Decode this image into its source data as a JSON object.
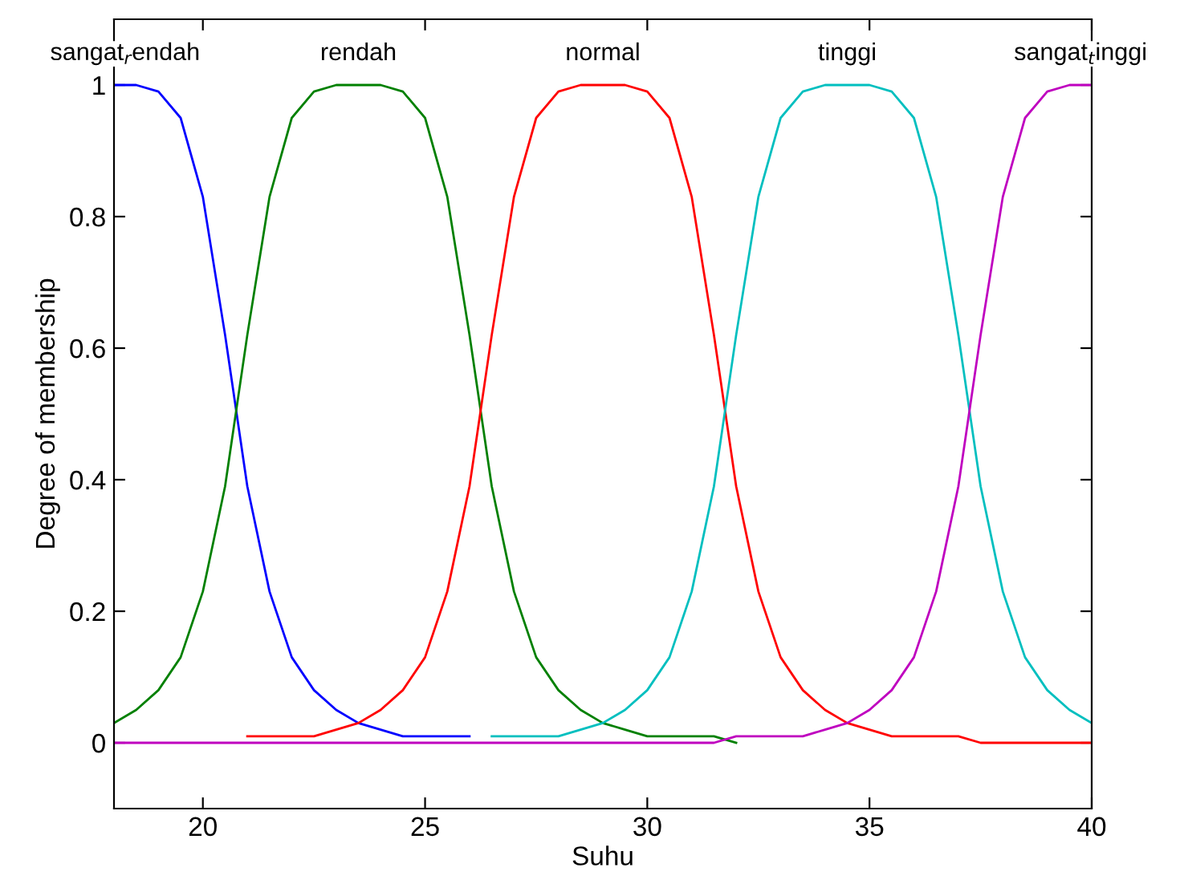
{
  "chart_data": {
    "type": "line",
    "xlabel": "Suhu",
    "ylabel": "Degree of membership",
    "x": [
      18,
      18.5,
      19,
      19.5,
      20,
      20.5,
      21,
      21.5,
      22,
      22.5,
      23,
      23.5,
      24,
      24.5,
      25,
      25.5,
      26,
      26.5,
      27,
      27.5,
      28,
      28.5,
      29,
      29.5,
      30,
      30.5,
      31,
      31.5,
      32,
      32.5,
      33,
      33.5,
      34,
      34.5,
      35,
      35.5,
      36,
      36.5,
      37,
      37.5,
      38,
      38.5,
      39,
      39.5,
      40
    ],
    "series": [
      {
        "name": "sangat$_{r}$endah",
        "color": "#0000ff",
        "values": [
          1,
          1,
          0.99,
          0.95,
          0.83,
          0.62,
          0.39,
          0.23,
          0.13,
          0.08,
          0.05,
          0.03,
          0.02,
          0.01,
          0.01,
          0.01,
          0.01,
          null,
          null,
          null,
          null,
          null,
          null,
          null,
          null,
          null,
          null,
          null,
          null,
          null,
          null,
          null,
          null,
          null,
          null,
          null,
          null,
          null,
          null,
          null,
          null,
          null,
          null,
          null,
          null
        ]
      },
      {
        "name": "rendah",
        "color": "#008000",
        "values": [
          0.03,
          0.05,
          0.08,
          0.13,
          0.23,
          0.39,
          0.62,
          0.83,
          0.95,
          0.99,
          1,
          1,
          1,
          0.99,
          0.95,
          0.83,
          0.62,
          0.39,
          0.23,
          0.13,
          0.08,
          0.05,
          0.03,
          0.02,
          0.01,
          0.01,
          0.01,
          0.01,
          0,
          null,
          null,
          null,
          null,
          null,
          null,
          null,
          null,
          null,
          null,
          null,
          null,
          null,
          null,
          null,
          null
        ]
      },
      {
        "name": "normal",
        "color": "#ff0000",
        "values": [
          null,
          null,
          null,
          null,
          null,
          null,
          0.01,
          0.01,
          0.01,
          0.01,
          0.02,
          0.03,
          0.05,
          0.08,
          0.13,
          0.23,
          0.39,
          0.62,
          0.83,
          0.95,
          0.99,
          1,
          1,
          1,
          0.99,
          0.95,
          0.83,
          0.62,
          0.39,
          0.23,
          0.13,
          0.08,
          0.05,
          0.03,
          0.02,
          0.01,
          0.01,
          0.01,
          0.01,
          0,
          0,
          0,
          0,
          0,
          0
        ]
      },
      {
        "name": "tinggi",
        "color": "#00bfbf",
        "values": [
          null,
          null,
          null,
          null,
          null,
          null,
          null,
          null,
          null,
          null,
          null,
          null,
          null,
          null,
          null,
          null,
          null,
          0.01,
          0.01,
          0.01,
          0.01,
          0.02,
          0.03,
          0.05,
          0.08,
          0.13,
          0.23,
          0.39,
          0.62,
          0.83,
          0.95,
          0.99,
          1,
          1,
          1,
          0.99,
          0.95,
          0.83,
          0.62,
          0.39,
          0.23,
          0.13,
          0.08,
          0.05,
          0.03
        ]
      },
      {
        "name": "sangat$_{t}$inggi",
        "color": "#bf00bf",
        "values": [
          0,
          0,
          0,
          0,
          0,
          0,
          0,
          0,
          0,
          0,
          0,
          0,
          0,
          0,
          0,
          0,
          0,
          0,
          0,
          0,
          0,
          0,
          0,
          0,
          0,
          0,
          0,
          0,
          0.01,
          0.01,
          0.01,
          0.01,
          0.02,
          0.03,
          0.05,
          0.08,
          0.13,
          0.23,
          0.39,
          0.62,
          0.83,
          0.95,
          0.99,
          1,
          1
        ]
      }
    ],
    "xlim": [
      18,
      40
    ],
    "ylim": [
      -0.1,
      1.1
    ],
    "xticks": [
      20,
      25,
      30,
      35,
      40
    ],
    "yticks": [
      0,
      0.2,
      0.4,
      0.6,
      0.8,
      1
    ],
    "grid": false,
    "legend": false,
    "marker": "none",
    "line_style": "solid"
  }
}
